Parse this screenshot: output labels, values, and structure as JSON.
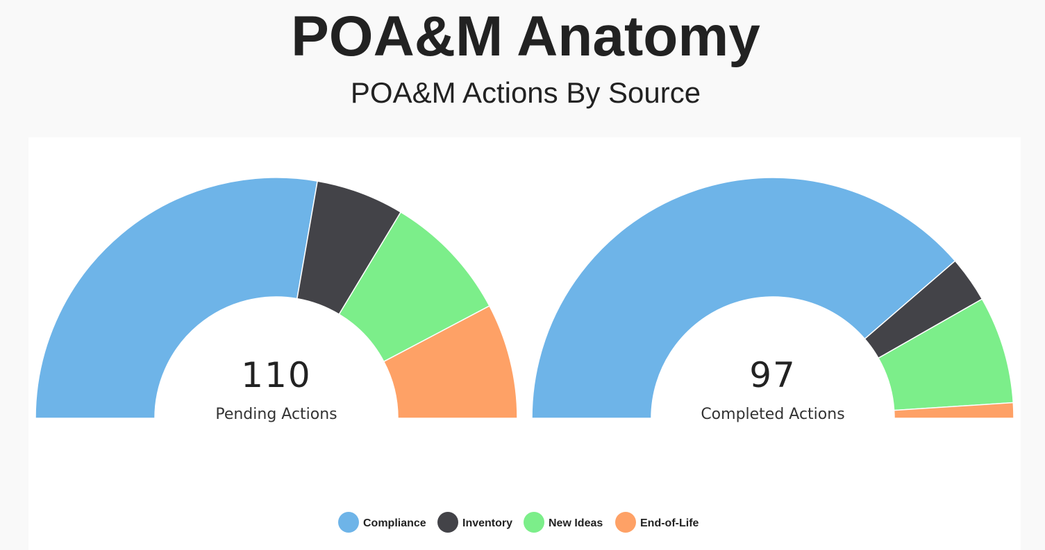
{
  "title": "POA&M Anatomy",
  "subtitle": "POA&M Actions By Source",
  "chart_data": [
    {
      "type": "pie",
      "semicircle": true,
      "total": 110,
      "total_label": "Pending Actions",
      "categories": [
        "Compliance",
        "Inventory",
        "New Ideas",
        "End-of-Life"
      ],
      "colors": [
        "#6eb4e8",
        "#434348",
        "#7cee8a",
        "#fea166"
      ],
      "values": [
        61,
        13,
        19,
        17
      ]
    },
    {
      "type": "pie",
      "semicircle": true,
      "total": 97,
      "total_label": "Completed Actions",
      "categories": [
        "Compliance",
        "Inventory",
        "New Ideas",
        "End-of-Life"
      ],
      "colors": [
        "#6eb4e8",
        "#434348",
        "#7cee8a",
        "#fea166"
      ],
      "values": [
        75,
        6,
        14,
        2
      ]
    }
  ]
}
